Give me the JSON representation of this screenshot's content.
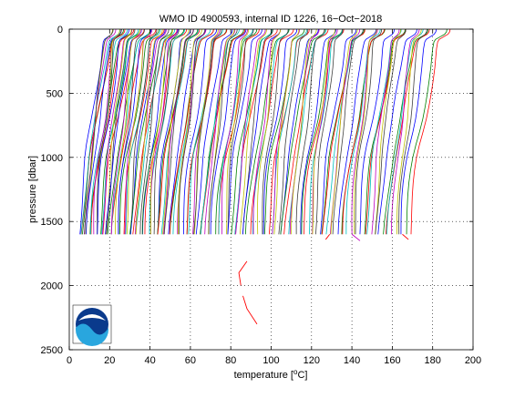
{
  "chart_data": {
    "type": "line",
    "title": "WMO ID 4900593, internal ID 1226, 16−Oct−2018",
    "xlabel": "temperature [°C]",
    "xlabel_main": "temperature [",
    "xlabel_unit": "C]",
    "ylabel": "pressure [dbar]",
    "xlim": [
      0,
      200
    ],
    "ylim": [
      0,
      2500
    ],
    "y_reversed": true,
    "grid": true,
    "grid_style": "dotted",
    "x_ticks": [
      0,
      20,
      40,
      60,
      80,
      100,
      120,
      140,
      160,
      180,
      200
    ],
    "y_ticks": [
      0,
      500,
      1000,
      1500,
      2000,
      2500
    ],
    "x_tick_labels": [
      "0",
      "20",
      "40",
      "60",
      "80",
      "100",
      "120",
      "140",
      "160",
      "180",
      "200"
    ],
    "y_tick_labels": [
      "0",
      "500",
      "1000",
      "1500",
      "2000",
      "2500"
    ],
    "series_note": "waterfall of many profile casts, each offset horizontally",
    "profile_offsets_start": 5,
    "profile_offsets_end": 168,
    "profile_count": 150,
    "profile_max_pressure": 1600,
    "colors": [
      "#0000ff",
      "#008000",
      "#ff0000",
      "#00bfbf",
      "#bf00bf",
      "#bfbf00",
      "#404040"
    ],
    "odd_profiles": [
      {
        "color": "#ff0000",
        "points": [
          [
            88,
            1810
          ],
          [
            84,
            1900
          ],
          [
            85,
            2000
          ]
        ]
      },
      {
        "color": "#ff0000",
        "points": [
          [
            86,
            2080
          ],
          [
            88,
            2180
          ],
          [
            93,
            2300
          ]
        ]
      },
      {
        "color": "#ff0000",
        "points": [
          [
            129,
            1600
          ],
          [
            127,
            1640
          ]
        ]
      },
      {
        "color": "#bf00bf",
        "points": [
          [
            140,
            1600
          ],
          [
            144,
            1650
          ]
        ]
      },
      {
        "color": "#ff0000",
        "points": [
          [
            165,
            1600
          ],
          [
            168,
            1640
          ]
        ]
      }
    ]
  },
  "logo": {
    "name": "noaa-logo",
    "text": "NOAA"
  }
}
